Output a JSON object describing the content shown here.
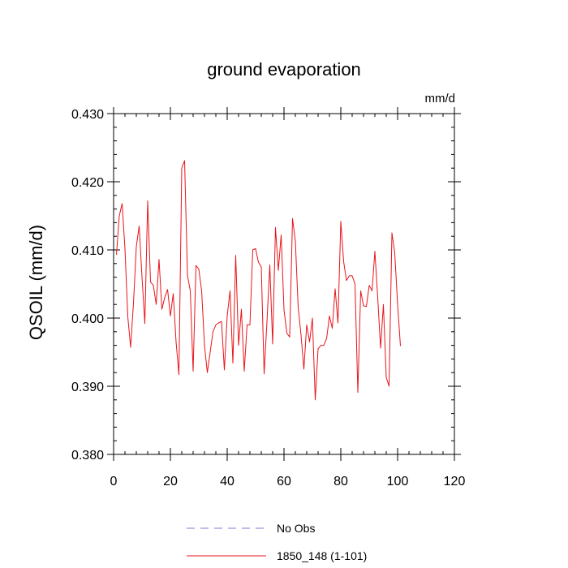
{
  "chart_data": {
    "type": "line",
    "title": "ground evaporation",
    "units": "mm/d",
    "xlabel": "",
    "ylabel": "QSOIL  (mm/d)",
    "xlim": [
      0,
      120
    ],
    "ylim": [
      0.38,
      0.43
    ],
    "x_ticks": [
      0,
      20,
      40,
      60,
      80,
      100,
      120
    ],
    "x_tick_labels": [
      "0",
      "20",
      "40",
      "60",
      "80",
      "100",
      "120"
    ],
    "y_ticks": [
      0.38,
      0.39,
      0.4,
      0.41,
      0.42,
      0.43
    ],
    "y_tick_labels": [
      "0.380",
      "0.390",
      "0.400",
      "0.410",
      "0.420",
      "0.430"
    ],
    "legend": [
      {
        "name": "No Obs",
        "color": "#7b7bd6",
        "style": "dashed"
      },
      {
        "name": "1850_148 (1-101)",
        "color": "#e8141a",
        "style": "solid"
      }
    ],
    "series": [
      {
        "name": "1850_148 (1-101)",
        "color": "#e8141a",
        "x": [
          1,
          2,
          3,
          4,
          5,
          6,
          7,
          8,
          9,
          10,
          11,
          12,
          13,
          14,
          15,
          16,
          17,
          18,
          19,
          20,
          21,
          22,
          23,
          24,
          25,
          26,
          27,
          28,
          29,
          30,
          31,
          32,
          33,
          34,
          35,
          36,
          37,
          38,
          39,
          40,
          41,
          42,
          43,
          44,
          45,
          46,
          47,
          48,
          49,
          50,
          51,
          52,
          53,
          54,
          55,
          56,
          57,
          58,
          59,
          60,
          61,
          62,
          63,
          64,
          65,
          66,
          67,
          68,
          69,
          70,
          71,
          72,
          73,
          74,
          75,
          76,
          77,
          78,
          79,
          80,
          81,
          82,
          83,
          84,
          85,
          86,
          87,
          88,
          89,
          90,
          91,
          92,
          93,
          94,
          95,
          96,
          97,
          98,
          99,
          100,
          101
        ],
        "values": [
          0.4093,
          0.415,
          0.4168,
          0.4102,
          0.4002,
          0.3957,
          0.4022,
          0.4105,
          0.4135,
          0.406,
          0.3992,
          0.4172,
          0.4053,
          0.4048,
          0.402,
          0.4086,
          0.4013,
          0.403,
          0.4042,
          0.4003,
          0.4036,
          0.3965,
          0.3917,
          0.422,
          0.4231,
          0.4063,
          0.404,
          0.3922,
          0.4077,
          0.4072,
          0.404,
          0.396,
          0.392,
          0.395,
          0.398,
          0.399,
          0.3993,
          0.3995,
          0.3924,
          0.4003,
          0.404,
          0.3934,
          0.4092,
          0.396,
          0.4013,
          0.3922,
          0.399,
          0.399,
          0.41,
          0.4102,
          0.4082,
          0.4075,
          0.3918,
          0.3995,
          0.4078,
          0.3962,
          0.4133,
          0.407,
          0.4122,
          0.4012,
          0.3978,
          0.3972,
          0.4146,
          0.4113,
          0.4015,
          0.3975,
          0.3925,
          0.399,
          0.3965,
          0.4,
          0.388,
          0.3955,
          0.396,
          0.396,
          0.397,
          0.4003,
          0.3985,
          0.4043,
          0.3993,
          0.4142,
          0.4083,
          0.4055,
          0.4062,
          0.4062,
          0.405,
          0.3891,
          0.404,
          0.4018,
          0.4017,
          0.4048,
          0.404,
          0.4098,
          0.403,
          0.3956,
          0.402,
          0.3913,
          0.39,
          0.4125,
          0.4095,
          0.402,
          0.3959
        ]
      }
    ]
  }
}
